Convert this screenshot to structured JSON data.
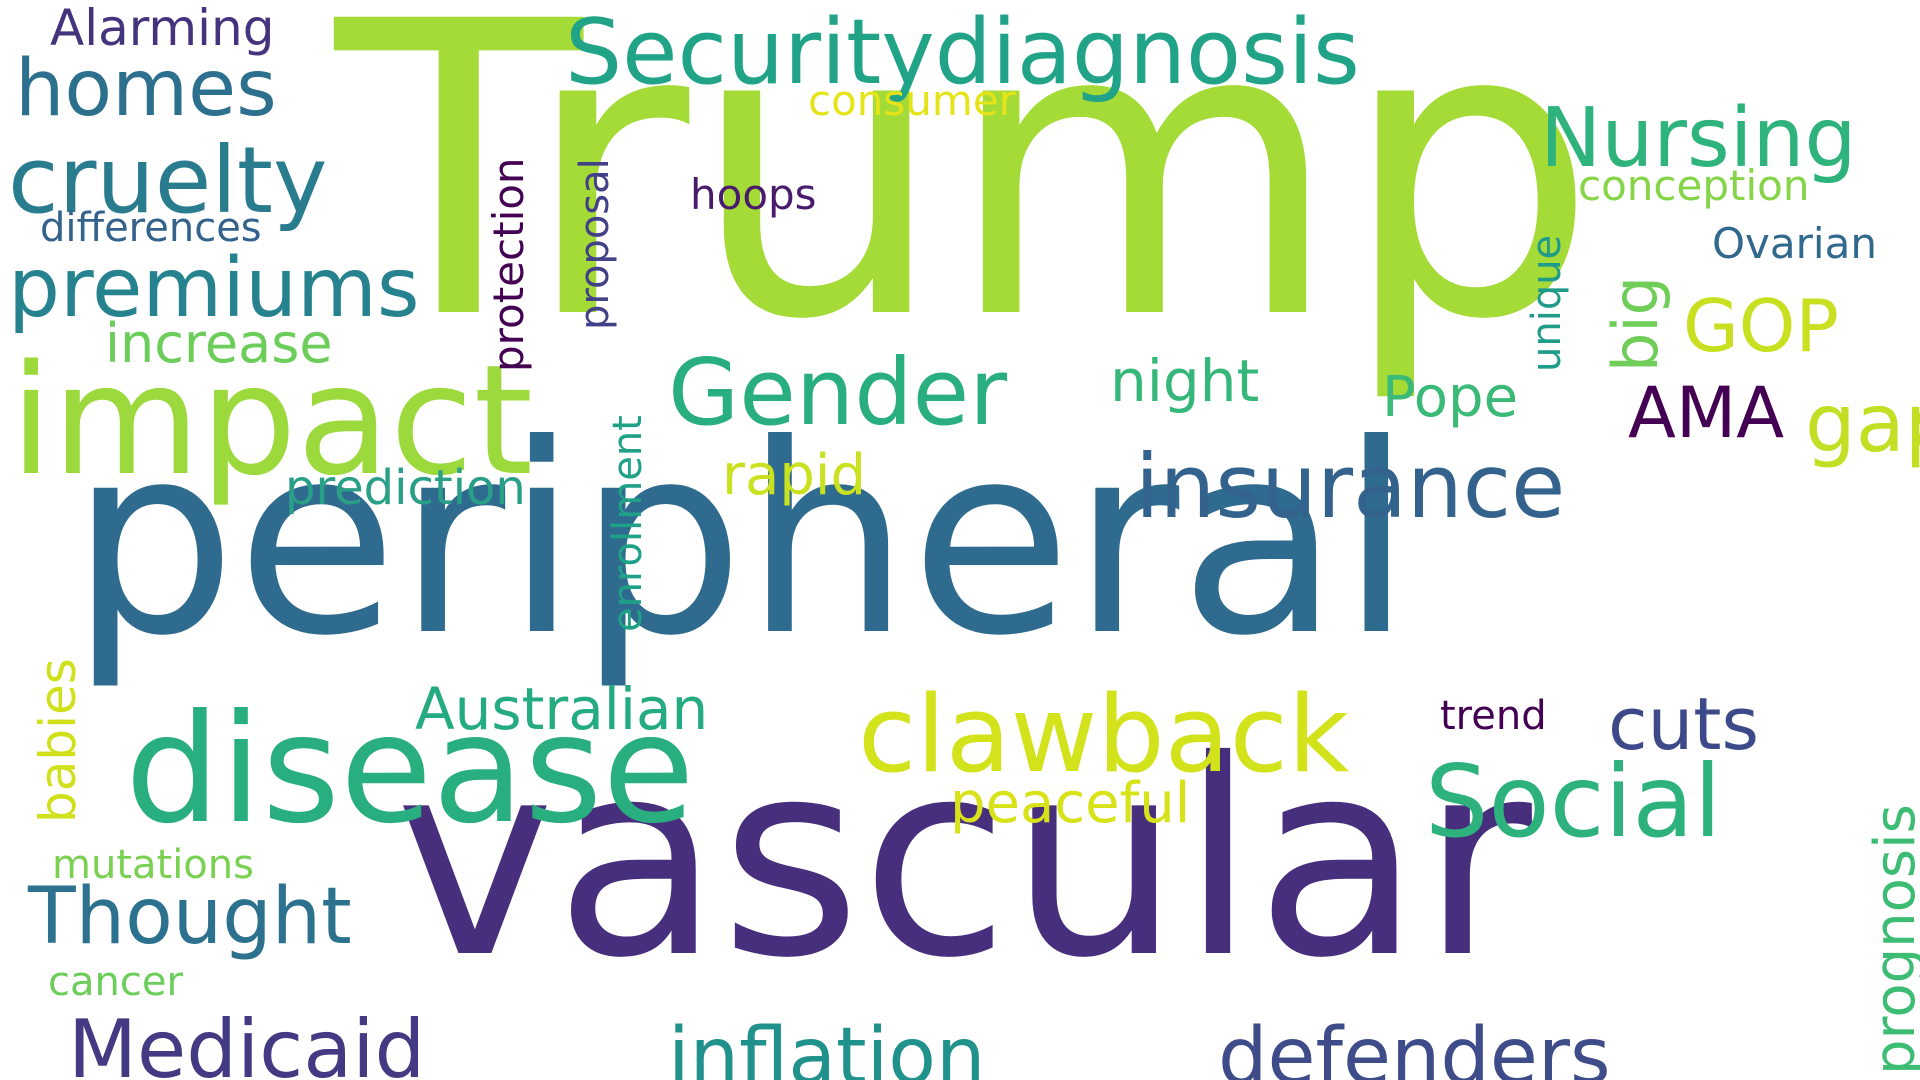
{
  "words": [
    {
      "text": "Trump",
      "color": "#a5db36"
    },
    {
      "text": "peripheral",
      "color": "#2f6b8e"
    },
    {
      "text": "vascular",
      "color": "#472f7d"
    },
    {
      "text": "disease",
      "color": "#29af7f"
    },
    {
      "text": "impact",
      "color": "#9bd93c"
    },
    {
      "text": "Securitydiagnosis",
      "color": "#20a386"
    },
    {
      "text": "clawback",
      "color": "#d2e21b"
    },
    {
      "text": "Social",
      "color": "#2db27d"
    },
    {
      "text": "insurance",
      "color": "#33638d"
    },
    {
      "text": "Gender",
      "color": "#29af7f"
    },
    {
      "text": "Nursing",
      "color": "#2eb37c"
    },
    {
      "text": "cruelty",
      "color": "#287c8e"
    },
    {
      "text": "premiums",
      "color": "#26828e"
    },
    {
      "text": "homes",
      "color": "#2d708e"
    },
    {
      "text": "Medicaid",
      "color": "#443983"
    },
    {
      "text": "inflation",
      "color": "#21918c"
    },
    {
      "text": "defenders",
      "color": "#3e4c8a"
    },
    {
      "text": "Thought",
      "color": "#2c728e"
    },
    {
      "text": "gaps",
      "color": "#c2df23"
    },
    {
      "text": "AMA",
      "color": "#440154"
    },
    {
      "text": "cuts",
      "color": "#3e4989"
    },
    {
      "text": "Australian",
      "color": "#25ab82"
    },
    {
      "text": "GOP",
      "color": "#c8e020"
    },
    {
      "text": "Pope",
      "color": "#3aba76"
    },
    {
      "text": "night",
      "color": "#35b779"
    },
    {
      "text": "rapid",
      "color": "#cae11f"
    },
    {
      "text": "peaceful",
      "color": "#d8e219"
    },
    {
      "text": "increase",
      "color": "#6ccd5a"
    },
    {
      "text": "prediction",
      "color": "#2a9f88"
    },
    {
      "text": "prognosis",
      "color": "#3dbc74"
    },
    {
      "text": "big",
      "color": "#6ece58"
    },
    {
      "text": "Alarming",
      "color": "#46337e"
    },
    {
      "text": "differences",
      "color": "#33638d"
    },
    {
      "text": "consumer",
      "color": "#e5e419"
    },
    {
      "text": "conception",
      "color": "#86d549"
    },
    {
      "text": "Ovarian",
      "color": "#31688e"
    },
    {
      "text": "hoops",
      "color": "#481b6d"
    },
    {
      "text": "protection",
      "color": "#440154"
    },
    {
      "text": "proposal",
      "color": "#424086"
    },
    {
      "text": "unique",
      "color": "#1e9c89"
    },
    {
      "text": "enrollment",
      "color": "#1fa188"
    },
    {
      "text": "babies",
      "color": "#d0e11c"
    },
    {
      "text": "mutations",
      "color": "#7ad151"
    },
    {
      "text": "cancer",
      "color": "#6ccd5a"
    },
    {
      "text": "trend",
      "color": "#440154"
    }
  ]
}
